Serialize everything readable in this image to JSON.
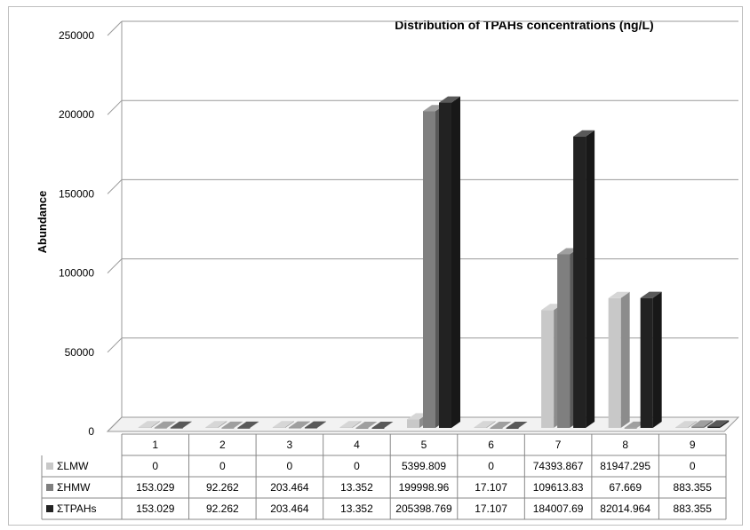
{
  "chart_data": {
    "type": "bar",
    "title": "Distribution of  TPAHs  concentrations (ng/L)",
    "ylabel": "Abundance",
    "xlabel": "",
    "ylim": [
      0,
      250000
    ],
    "yticks": [
      "0",
      "50000",
      "100000",
      "150000",
      "200000",
      "250000"
    ],
    "grid": true,
    "legend_placement": "data-table-left",
    "categories": [
      "1",
      "2",
      "3",
      "4",
      "5",
      "6",
      "7",
      "8",
      "9"
    ],
    "series": [
      {
        "name": "ΣLMW",
        "color": "#c8c8c8",
        "values": [
          0,
          0,
          0,
          0,
          5399.809,
          0,
          74393.867,
          81947.295,
          0
        ],
        "labels": [
          "0",
          "0",
          "0",
          "0",
          "5399.809",
          "0",
          "74393.867",
          "81947.295",
          "0"
        ]
      },
      {
        "name": "ΣHMW",
        "color": "#7f7f7f",
        "values": [
          153.029,
          92.262,
          203.464,
          13.352,
          199998.96,
          17.107,
          109613.83,
          67.669,
          883.355
        ],
        "labels": [
          "153.029",
          "92.262",
          "203.464",
          "13.352",
          "199998.96",
          "17.107",
          "109613.83",
          "67.669",
          "883.355"
        ]
      },
      {
        "name": "ΣTPAHs",
        "color": "#222222",
        "values": [
          153.029,
          92.262,
          203.464,
          13.352,
          205398.769,
          17.107,
          184007.69,
          82014.964,
          883.355
        ],
        "labels": [
          "153.029",
          "92.262",
          "203.464",
          "13.352",
          "205398.769",
          "17.107",
          "184007.69",
          "82014.964",
          "883.355"
        ]
      }
    ]
  }
}
